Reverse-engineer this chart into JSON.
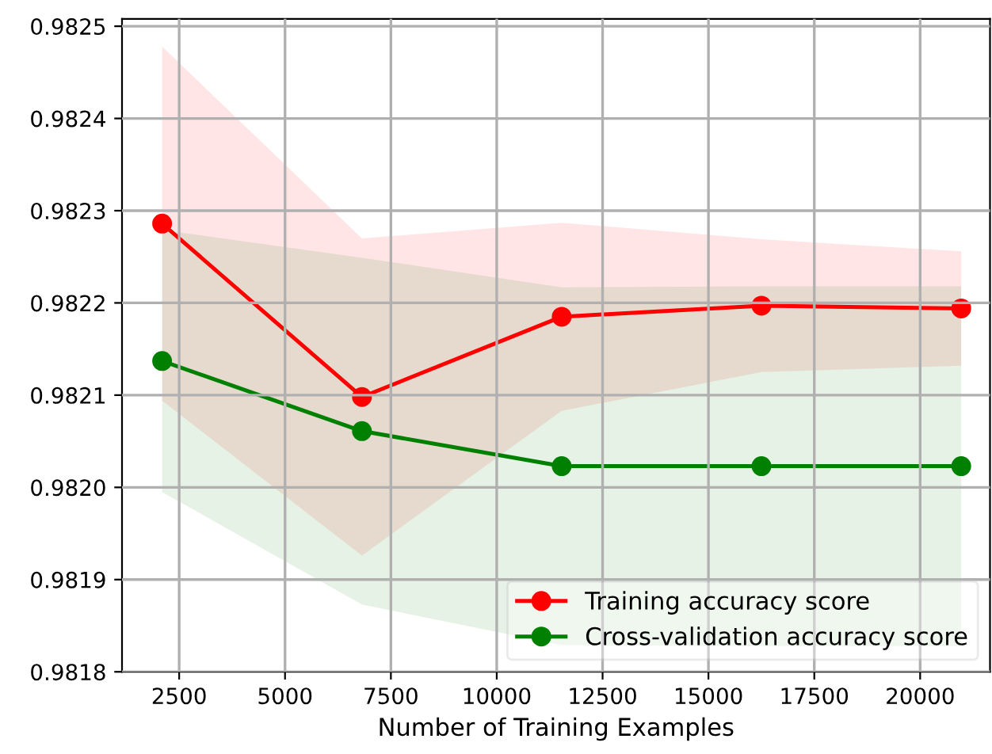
{
  "chart_data": {
    "type": "line",
    "xlabel": "Number of Training Examples",
    "x": [
      2097,
      6816,
      11534,
      16252,
      20970
    ],
    "series": [
      {
        "name": "Training accuracy score",
        "color": "#ff0000",
        "values": [
          0.982286,
          0.982098,
          0.982185,
          0.982197,
          0.982194
        ],
        "lower": [
          0.982094,
          0.981926,
          0.982083,
          0.982125,
          0.982132
        ],
        "upper": [
          0.982478,
          0.98227,
          0.982287,
          0.982269,
          0.982256
        ]
      },
      {
        "name": "Cross-validation accuracy score",
        "color": "#008000",
        "values": [
          0.982137,
          0.982061,
          0.982023,
          0.982023,
          0.982023
        ],
        "lower": [
          0.981995,
          0.981873,
          0.981829,
          0.981828,
          0.981828
        ],
        "upper": [
          0.982279,
          0.982249,
          0.982217,
          0.982218,
          0.982218
        ]
      }
    ],
    "xlim": [
      1150,
      21650
    ],
    "xticks": [
      2500,
      5000,
      7500,
      10000,
      12500,
      15000,
      17500,
      20000
    ],
    "ylim": [
      0.9818,
      0.982508
    ],
    "yticks": [
      0.9818,
      0.9819,
      0.9821,
      {
        "value": 0.982,
        "label": "0.9820"
      },
      0.9822,
      0.9823,
      0.9824,
      0.9825
    ],
    "grid": true,
    "legend": "lower right",
    "marker": "circle",
    "line_style": "solid"
  }
}
